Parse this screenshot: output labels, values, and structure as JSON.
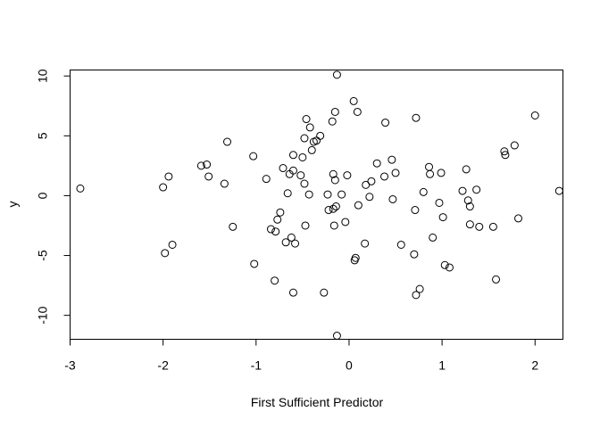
{
  "chart_data": {
    "type": "scatter",
    "title": "",
    "xlabel": "First Sufficient Predictor",
    "ylabel": "y",
    "xlim": [
      -3.0,
      2.3
    ],
    "ylim": [
      -12.0,
      10.5
    ],
    "x_ticks": [
      -3,
      -2,
      -1,
      0,
      1,
      2
    ],
    "y_ticks": [
      -10,
      -5,
      0,
      5,
      10
    ],
    "x_tick_labels": [
      "-3",
      "-2",
      "-1",
      "0",
      "1",
      "2"
    ],
    "y_tick_labels": [
      "-10",
      "-5",
      "0",
      "5",
      "10"
    ],
    "grid": false,
    "legend": "none",
    "marker": "open-circle",
    "series": [
      {
        "points": [
          [
            -2.89,
            0.6
          ],
          [
            -2.0,
            0.7
          ],
          [
            -1.98,
            -4.8
          ],
          [
            -1.94,
            1.6
          ],
          [
            -1.9,
            -4.1
          ],
          [
            -1.59,
            2.5
          ],
          [
            -1.53,
            2.6
          ],
          [
            -1.51,
            1.6
          ],
          [
            -1.34,
            1.0
          ],
          [
            -1.31,
            4.5
          ],
          [
            -1.25,
            -2.6
          ],
          [
            -1.03,
            3.3
          ],
          [
            -1.02,
            -5.7
          ],
          [
            -0.89,
            1.4
          ],
          [
            -0.84,
            -2.8
          ],
          [
            -0.8,
            -7.1
          ],
          [
            -0.79,
            -3.0
          ],
          [
            -0.77,
            -2.0
          ],
          [
            -0.74,
            -1.4
          ],
          [
            -0.71,
            2.3
          ],
          [
            -0.68,
            -3.9
          ],
          [
            -0.66,
            0.2
          ],
          [
            -0.64,
            1.8
          ],
          [
            -0.62,
            -3.5
          ],
          [
            -0.6,
            2.1
          ],
          [
            -0.6,
            3.4
          ],
          [
            -0.6,
            -8.1
          ],
          [
            -0.58,
            -4.0
          ],
          [
            -0.52,
            1.7
          ],
          [
            -0.5,
            3.2
          ],
          [
            -0.48,
            4.8
          ],
          [
            -0.48,
            1.0
          ],
          [
            -0.47,
            -2.5
          ],
          [
            -0.46,
            6.4
          ],
          [
            -0.43,
            0.1
          ],
          [
            -0.42,
            5.7
          ],
          [
            -0.4,
            3.8
          ],
          [
            -0.38,
            4.5
          ],
          [
            -0.35,
            4.6
          ],
          [
            -0.31,
            5.0
          ],
          [
            -0.27,
            -8.1
          ],
          [
            -0.23,
            0.1
          ],
          [
            -0.22,
            -1.2
          ],
          [
            -0.18,
            6.2
          ],
          [
            -0.17,
            1.8
          ],
          [
            -0.17,
            -1.1
          ],
          [
            -0.16,
            -2.5
          ],
          [
            -0.15,
            7.0
          ],
          [
            -0.15,
            1.3
          ],
          [
            -0.14,
            -0.9
          ],
          [
            -0.13,
            10.1
          ],
          [
            -0.13,
            -11.7
          ],
          [
            -0.08,
            0.1
          ],
          [
            -0.04,
            -2.2
          ],
          [
            -0.02,
            1.7
          ],
          [
            0.05,
            7.9
          ],
          [
            0.06,
            -5.4
          ],
          [
            0.07,
            -5.2
          ],
          [
            0.09,
            7.0
          ],
          [
            0.1,
            -0.8
          ],
          [
            0.17,
            -4.0
          ],
          [
            0.18,
            0.9
          ],
          [
            0.22,
            -0.1
          ],
          [
            0.24,
            1.2
          ],
          [
            0.3,
            2.7
          ],
          [
            0.38,
            1.6
          ],
          [
            0.39,
            6.1
          ],
          [
            0.46,
            3.0
          ],
          [
            0.47,
            -0.3
          ],
          [
            0.5,
            1.9
          ],
          [
            0.56,
            -4.1
          ],
          [
            0.7,
            -4.9
          ],
          [
            0.71,
            -1.2
          ],
          [
            0.72,
            6.5
          ],
          [
            0.72,
            -8.3
          ],
          [
            0.76,
            -7.8
          ],
          [
            0.8,
            0.3
          ],
          [
            0.86,
            2.4
          ],
          [
            0.87,
            1.8
          ],
          [
            0.9,
            -3.5
          ],
          [
            0.97,
            -0.6
          ],
          [
            0.99,
            1.9
          ],
          [
            1.01,
            -1.8
          ],
          [
            1.03,
            -5.8
          ],
          [
            1.08,
            -6.0
          ],
          [
            1.22,
            0.4
          ],
          [
            1.26,
            2.2
          ],
          [
            1.28,
            -0.4
          ],
          [
            1.3,
            -0.9
          ],
          [
            1.3,
            -2.4
          ],
          [
            1.37,
            0.5
          ],
          [
            1.4,
            -2.6
          ],
          [
            1.55,
            -2.6
          ],
          [
            1.58,
            -7.0
          ],
          [
            1.67,
            3.7
          ],
          [
            1.68,
            3.4
          ],
          [
            1.78,
            4.2
          ],
          [
            1.82,
            -1.9
          ],
          [
            2.0,
            6.7
          ],
          [
            2.26,
            0.4
          ]
        ]
      }
    ]
  }
}
